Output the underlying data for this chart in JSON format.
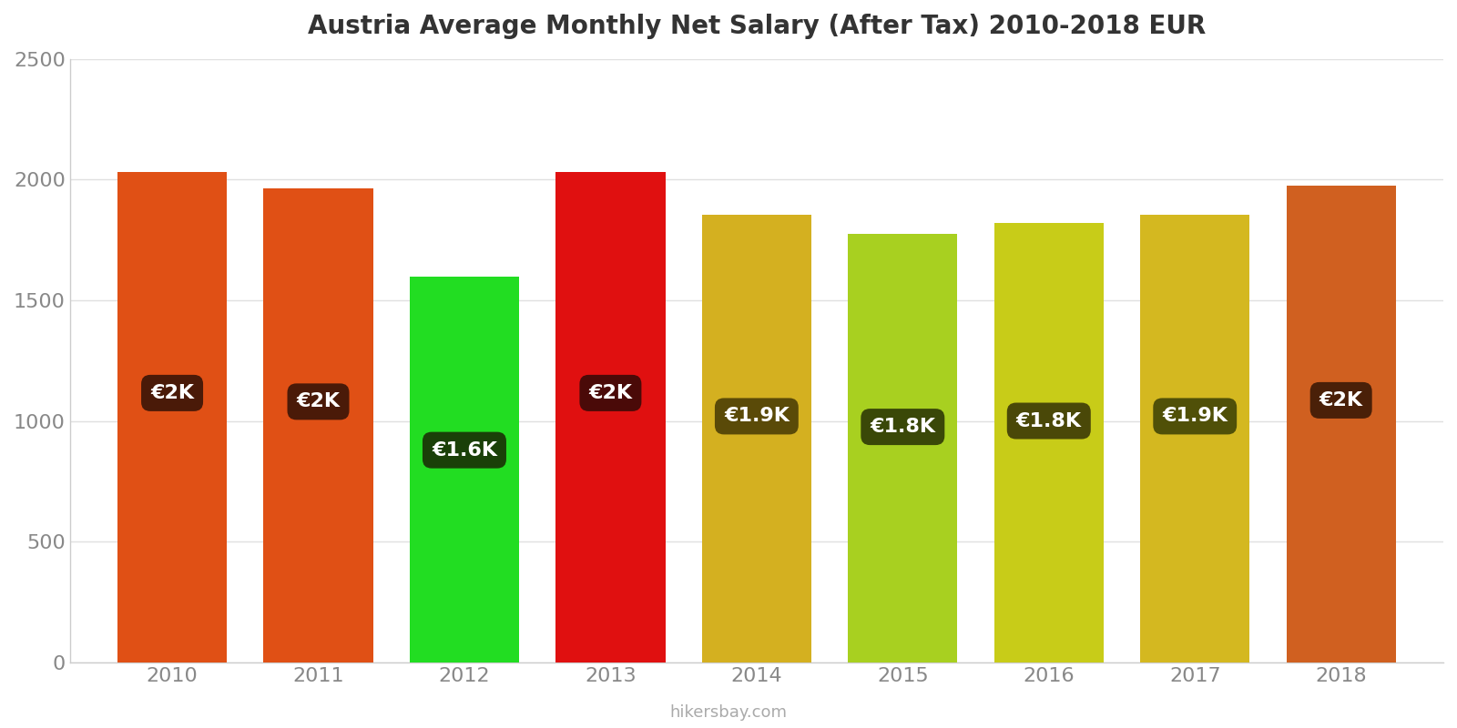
{
  "title": "Austria Average Monthly Net Salary (After Tax) 2010-2018 EUR",
  "years": [
    2010,
    2011,
    2012,
    2013,
    2014,
    2015,
    2016,
    2017,
    2018
  ],
  "values": [
    2030,
    1965,
    1600,
    2030,
    1855,
    1775,
    1820,
    1855,
    1975
  ],
  "labels": [
    "€2K",
    "€2K",
    "€1.6K",
    "€2K",
    "€1.9K",
    "€1.8K",
    "€1.8K",
    "€1.9K",
    "€2K"
  ],
  "bar_colors": [
    "#e05015",
    "#e05015",
    "#22dd22",
    "#e01010",
    "#d4b020",
    "#a8d020",
    "#c8cc18",
    "#d4b820",
    "#d06020"
  ],
  "label_bg_colors": [
    "#4a1a08",
    "#4a1a08",
    "#1a4008",
    "#4a0a08",
    "#5a4a08",
    "#3a4808",
    "#4a4808",
    "#505008",
    "#4a2008"
  ],
  "ylim": [
    0,
    2500
  ],
  "yticks": [
    0,
    500,
    1000,
    1500,
    2000,
    2500
  ],
  "watermark": "hikersbay.com",
  "background_color": "#ffffff",
  "grid_color": "#e0e0e0",
  "title_fontsize": 20,
  "tick_fontsize": 16,
  "label_fontsize": 16,
  "bar_width": 0.75
}
